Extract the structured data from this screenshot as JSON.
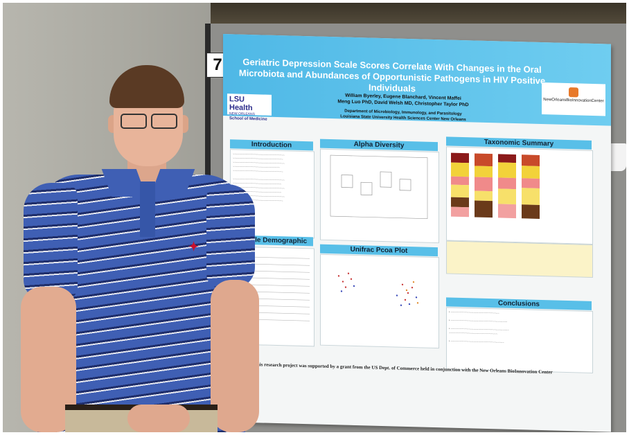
{
  "board_number": "7",
  "poster": {
    "title": "Geriatric Depression Scale Scores Correlate With Changes in the Oral Microbiota and Abundances of Opportunistic Pathogens in HIV Positive Individuals",
    "authors_line1": "William Byerley, Eugene Blanchard, Vincent Maffei",
    "authors_line2": "Meng Luo PhD, David Welsh MD, Christopher Taylor PhD",
    "dept_line1": "Department of Microbiology, Immunology, and Parasitology",
    "dept_line2": "Louisiana State University Health Sciences Center New Orleans",
    "lsu_logo": {
      "name": "LSU Health",
      "sub": "NEW ORLEANS",
      "school": "School of Medicine"
    },
    "partner_logo": "NewOrleansBioInnovationCenter",
    "sections": {
      "introduction": "Introduction",
      "sample_demographic": "Sample Demographic",
      "alpha_diversity": "Alpha Diversity",
      "unifrac": "Unifrac Pcoa Plot",
      "taxonomic": "Taxonomic Summary",
      "conclusions": "Conclusions"
    },
    "footer": "This research project was supported by a grant from the US Dept. of Commerce held in conjunction with the New Orleans BioInnovation Center"
  },
  "colors": {
    "poster_header": "#4fb8e6",
    "section_header": "#58bfe8",
    "shirt": "#3f5fb4"
  }
}
